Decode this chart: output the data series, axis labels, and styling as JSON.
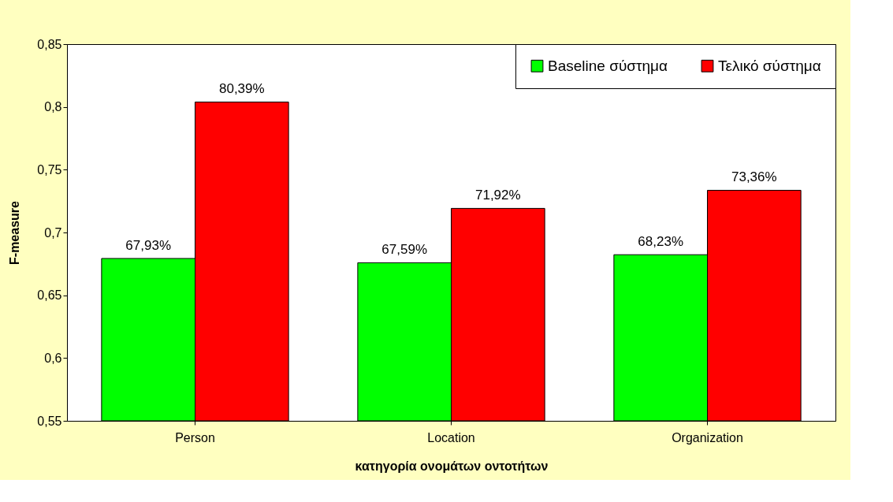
{
  "chart_data": {
    "type": "bar",
    "xlabel": "κατηγορία ονομάτων οντοτήτων",
    "ylabel": "F-measure",
    "categories": [
      "Person",
      "Location",
      "Organization"
    ],
    "series": [
      {
        "name": "Baseline σύστημα",
        "color": "#00ff00",
        "values": [
          0.6793,
          0.6759,
          0.6823
        ],
        "value_labels": [
          "67,93%",
          "67,59%",
          "68,23%"
        ]
      },
      {
        "name": "Τελικό σύστημα",
        "color": "#ff0000",
        "values": [
          0.8039,
          0.7192,
          0.7336
        ],
        "value_labels": [
          "80,39%",
          "71,92%",
          "73,36%"
        ]
      }
    ],
    "ylim": [
      0.55,
      0.85
    ],
    "yticks": [
      {
        "value": 0.55,
        "label": "0,55"
      },
      {
        "value": 0.6,
        "label": "0,6"
      },
      {
        "value": 0.65,
        "label": "0,65"
      },
      {
        "value": 0.7,
        "label": "0,7"
      },
      {
        "value": 0.75,
        "label": "0,75"
      },
      {
        "value": 0.8,
        "label": "0,8"
      },
      {
        "value": 0.85,
        "label": "0,85"
      }
    ],
    "grid": false,
    "legend": "top right"
  }
}
